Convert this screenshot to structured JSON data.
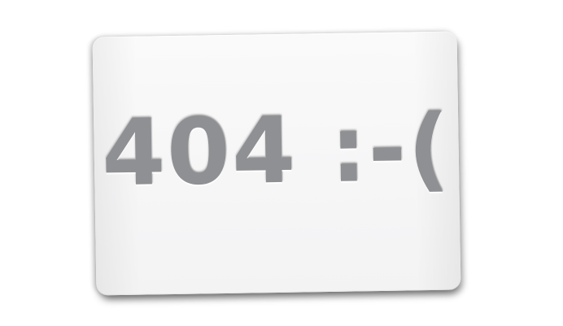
{
  "error": {
    "message": "404 :-("
  }
}
